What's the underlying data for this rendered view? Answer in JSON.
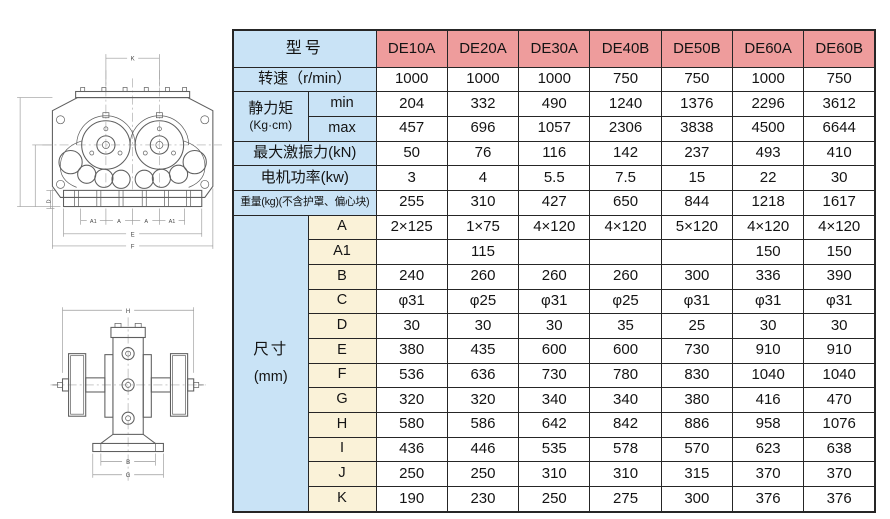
{
  "colors": {
    "model_header_bg": "#EE9C9C",
    "label_bg": "#C9E3F6",
    "dimension_label_bg": "#FAF2D8",
    "border": "#262626"
  },
  "table": {
    "model_header_label": "型号",
    "models": [
      "DE10A",
      "DE20A",
      "DE30A",
      "DE40B",
      "DE50B",
      "DE60A",
      "DE60B"
    ],
    "spec_rows": [
      {
        "label": "转速（r/min）",
        "values": [
          "1000",
          "1000",
          "1000",
          "750",
          "750",
          "1000",
          "750"
        ]
      },
      {
        "label": "静力矩",
        "label2": "(Kg·cm)",
        "sub": [
          {
            "sublabel": "min",
            "values": [
              "204",
              "332",
              "490",
              "1240",
              "1376",
              "2296",
              "3612"
            ]
          },
          {
            "sublabel": "max",
            "values": [
              "457",
              "696",
              "1057",
              "2306",
              "3838",
              "4500",
              "6644"
            ]
          }
        ]
      },
      {
        "label": "最大激振力(kN)",
        "values": [
          "50",
          "76",
          "116",
          "142",
          "237",
          "493",
          "410"
        ]
      },
      {
        "label": "电机功率(kw)",
        "values": [
          "3",
          "4",
          "5.5",
          "7.5",
          "15",
          "22",
          "30"
        ]
      },
      {
        "label": "重量(kg)(不含护罩、偏心块)",
        "values": [
          "255",
          "310",
          "427",
          "650",
          "844",
          "1218",
          "1617"
        ]
      }
    ],
    "dimension_group": {
      "label_line1": "尺寸",
      "label_line2": "(mm)",
      "rows": [
        {
          "dim": "A",
          "values": [
            "2×125",
            "1×75",
            "4×120",
            "4×120",
            "5×120",
            "4×120",
            "4×120"
          ]
        },
        {
          "dim": "A1",
          "values": [
            "",
            "115",
            "",
            "",
            "",
            "150",
            "150"
          ]
        },
        {
          "dim": "B",
          "values": [
            "240",
            "260",
            "260",
            "260",
            "300",
            "336",
            "390"
          ]
        },
        {
          "dim": "C",
          "values": [
            "φ31",
            "φ25",
            "φ31",
            "φ25",
            "φ31",
            "φ31",
            "φ31"
          ]
        },
        {
          "dim": "D",
          "values": [
            "30",
            "30",
            "30",
            "35",
            "25",
            "30",
            "30"
          ]
        },
        {
          "dim": "E",
          "values": [
            "380",
            "435",
            "600",
            "600",
            "730",
            "910",
            "910"
          ]
        },
        {
          "dim": "F",
          "values": [
            "536",
            "636",
            "730",
            "780",
            "830",
            "1040",
            "1040"
          ]
        },
        {
          "dim": "G",
          "values": [
            "320",
            "320",
            "340",
            "340",
            "380",
            "416",
            "470"
          ]
        },
        {
          "dim": "H",
          "values": [
            "580",
            "586",
            "642",
            "842",
            "886",
            "958",
            "1076"
          ]
        },
        {
          "dim": "I",
          "values": [
            "436",
            "446",
            "535",
            "578",
            "570",
            "623",
            "638"
          ]
        },
        {
          "dim": "J",
          "values": [
            "250",
            "250",
            "310",
            "310",
            "315",
            "370",
            "370"
          ]
        },
        {
          "dim": "K",
          "values": [
            "190",
            "230",
            "250",
            "275",
            "300",
            "376",
            "376"
          ]
        }
      ]
    }
  },
  "drawings": {
    "top": {
      "K": "K",
      "A1L": "A1",
      "AL": "A",
      "AR": "A",
      "A1R": "A1",
      "E": "E",
      "F": "F",
      "D": "D"
    },
    "side": {
      "H": "H",
      "B": "B",
      "G": "G"
    }
  }
}
